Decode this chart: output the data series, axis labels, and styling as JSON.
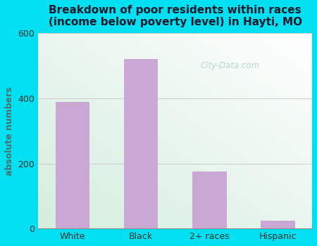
{
  "title": "Breakdown of poor residents within races\n(income below poverty level) in Hayti, MO",
  "categories": [
    "White",
    "Black",
    "2+ races",
    "Hispanic"
  ],
  "values": [
    390,
    520,
    175,
    25
  ],
  "bar_color": "#c9a8d4",
  "ylabel": "absolute numbers",
  "ylim": [
    0,
    600
  ],
  "yticks": [
    0,
    200,
    400,
    600
  ],
  "bg_outer": "#00e0f0",
  "title_color": "#1a1a2e",
  "axis_color": "#4a7070",
  "watermark": "City-Data.com",
  "title_fontsize": 11
}
